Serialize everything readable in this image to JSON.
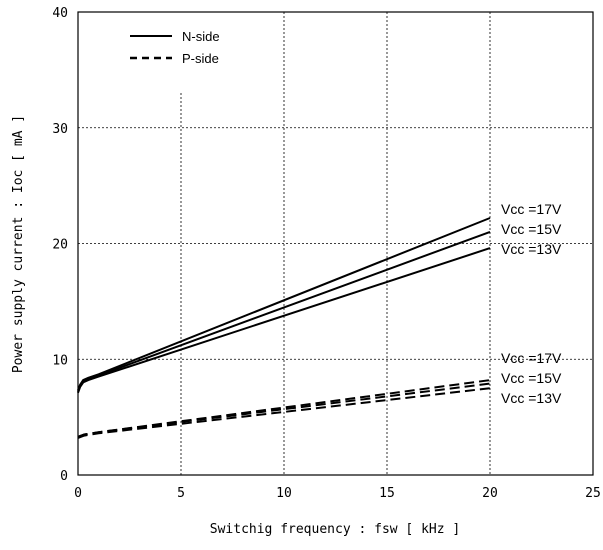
{
  "chart_data": {
    "type": "line",
    "xlabel": "Switchig frequency : fsw [ kHz ]",
    "ylabel": "Power supply current : Ioc [ mA ]",
    "xlim": [
      0,
      25
    ],
    "ylim": [
      0,
      40
    ],
    "x_ticks": [
      "0",
      "5",
      "10",
      "15",
      "20",
      "25"
    ],
    "y_ticks": [
      "0",
      "10",
      "20",
      "30",
      "40"
    ],
    "grid": true,
    "legend": {
      "placement": "top-left",
      "entries": [
        {
          "label": "N-side",
          "style": "solid"
        },
        {
          "label": "P-side",
          "style": "dashed"
        }
      ]
    },
    "series": [
      {
        "group": "N-side",
        "vcc": "Vcc =17V",
        "style": "solid",
        "points": [
          [
            0,
            7.3
          ],
          [
            0.1,
            7.8
          ],
          [
            0.25,
            8.2
          ],
          [
            0.5,
            8.4
          ],
          [
            1,
            8.7
          ],
          [
            20,
            22.2
          ]
        ]
      },
      {
        "group": "N-side",
        "vcc": "Vcc =15V",
        "style": "solid",
        "points": [
          [
            0,
            7.2
          ],
          [
            0.1,
            7.7
          ],
          [
            0.25,
            8.1
          ],
          [
            0.5,
            8.3
          ],
          [
            1,
            8.6
          ],
          [
            20,
            21.0
          ]
        ]
      },
      {
        "group": "N-side",
        "vcc": "Vcc =13V",
        "style": "solid",
        "points": [
          [
            0,
            7.1
          ],
          [
            0.1,
            7.6
          ],
          [
            0.25,
            8.0
          ],
          [
            0.5,
            8.2
          ],
          [
            1,
            8.5
          ],
          [
            20,
            19.6
          ]
        ]
      },
      {
        "group": "P-side",
        "vcc": "Vcc =17V",
        "style": "dashed",
        "points": [
          [
            0,
            3.3
          ],
          [
            0.3,
            3.5
          ],
          [
            1,
            3.7
          ],
          [
            20,
            8.2
          ]
        ]
      },
      {
        "group": "P-side",
        "vcc": "Vcc =15V",
        "style": "dashed",
        "points": [
          [
            0,
            3.3
          ],
          [
            0.3,
            3.5
          ],
          [
            1,
            3.7
          ],
          [
            20,
            7.9
          ]
        ]
      },
      {
        "group": "P-side",
        "vcc": "Vcc =13V",
        "style": "dashed",
        "points": [
          [
            0,
            3.2
          ],
          [
            0.3,
            3.4
          ],
          [
            1,
            3.6
          ],
          [
            20,
            7.5
          ]
        ]
      }
    ],
    "annotations": {
      "n_side": [
        "Vcc =17V",
        "Vcc =15V",
        "Vcc =13V"
      ],
      "p_side": [
        "Vcc =17V",
        "Vcc =15V",
        "Vcc =13V"
      ]
    }
  }
}
